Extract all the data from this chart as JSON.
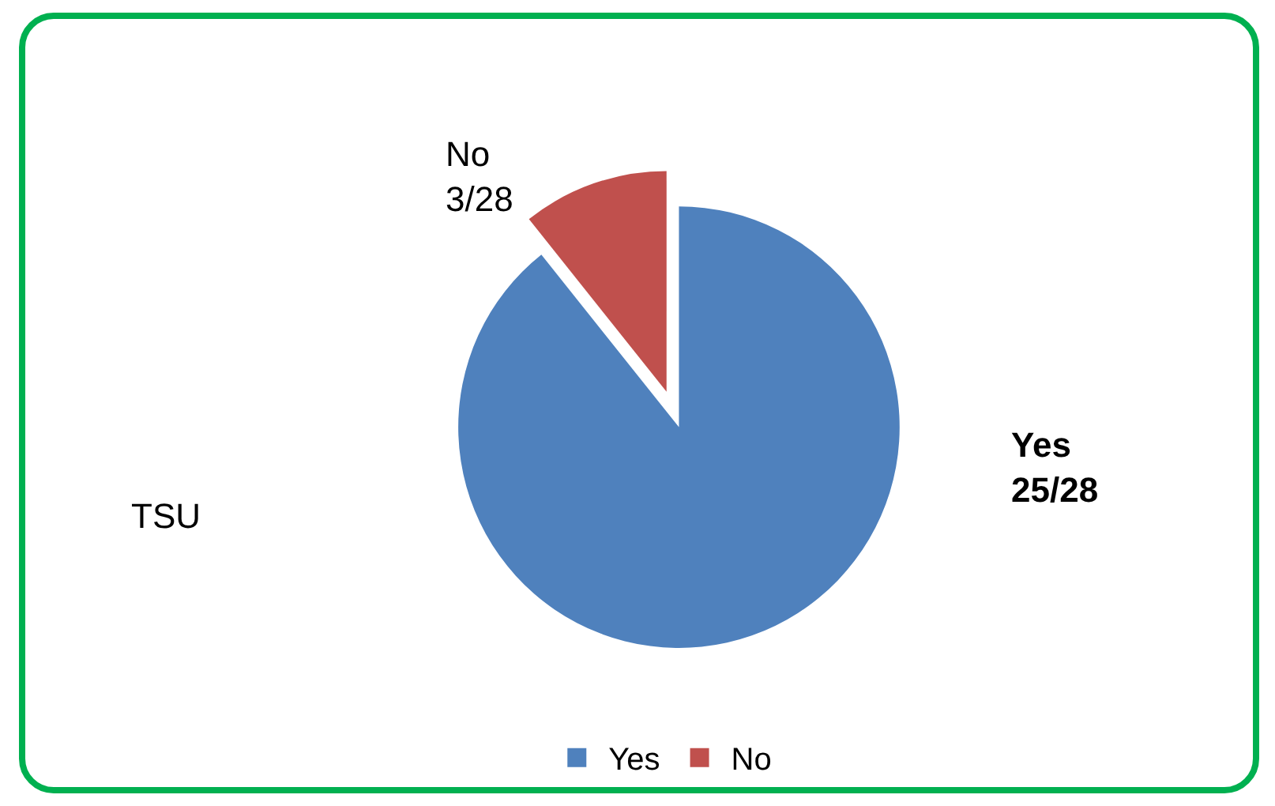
{
  "chart_data": {
    "type": "pie",
    "categories": [
      "Yes",
      "No"
    ],
    "values": [
      25,
      3
    ],
    "colors": [
      "#4f81bd",
      "#c0504d"
    ],
    "value_labels": [
      "25/28",
      "3/28"
    ],
    "annotations": [
      "TSU"
    ],
    "legend": "bottom"
  }
}
